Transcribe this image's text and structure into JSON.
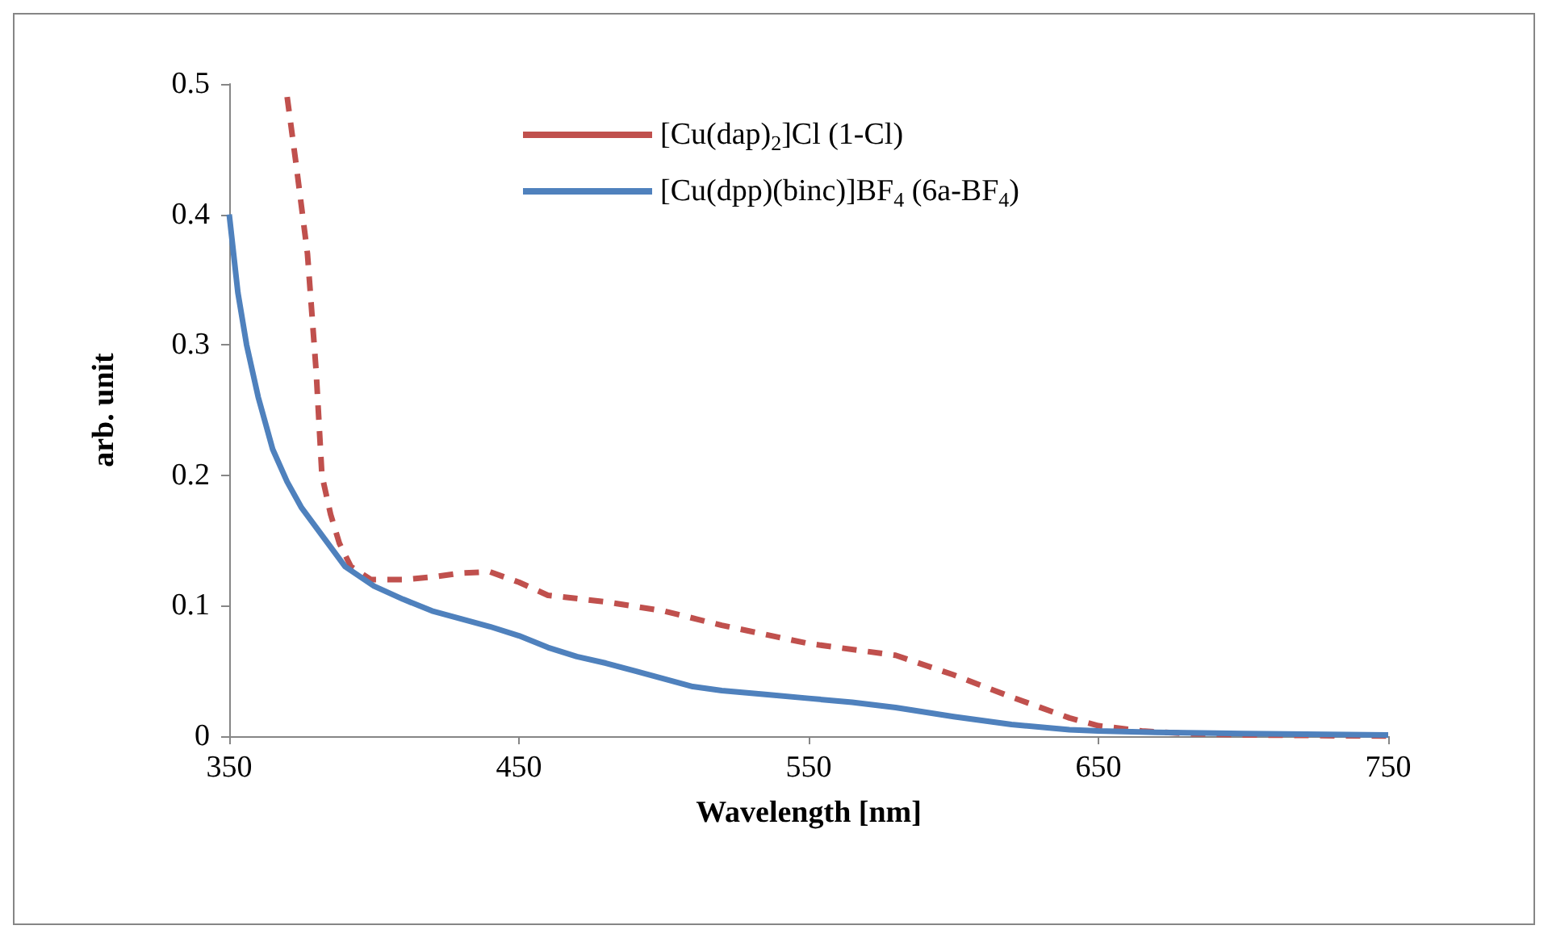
{
  "chart_data": {
    "type": "line",
    "xlabel": "Wavelength [nm]",
    "ylabel": "arb. unit",
    "xlim": [
      350,
      750
    ],
    "xticks": [
      350,
      450,
      550,
      650,
      750
    ],
    "ylim": [
      0,
      0.5
    ],
    "yticks": [
      0,
      0.1,
      0.2,
      0.3,
      0.4,
      0.5
    ],
    "grid": false,
    "legend": "top",
    "marker": "none",
    "series": [
      {
        "name": "[Cu(dap)$_{2}$]Cl (1-Cl)",
        "color": "#c0504d",
        "line_style": "dashed",
        "x": [
          370,
          373,
          377,
          380,
          382,
          385,
          388,
          392,
          399,
          410,
          420,
          430,
          440,
          450,
          460,
          480,
          500,
          520,
          550,
          580,
          600,
          620,
          640,
          650,
          665,
          680,
          700,
          750
        ],
        "values": [
          0.49,
          0.44,
          0.37,
          0.28,
          0.2,
          0.17,
          0.148,
          0.13,
          0.12,
          0.12,
          0.122,
          0.125,
          0.126,
          0.118,
          0.108,
          0.103,
          0.096,
          0.085,
          0.071,
          0.062,
          0.047,
          0.03,
          0.014,
          0.008,
          0.004,
          0.002,
          0.001,
          0
        ]
      },
      {
        "name": "[Cu(dpp)(binc)]BF$_{4}$ (6a-BF$_{4}$)",
        "color": "#4f81bd",
        "line_style": "solid",
        "x": [
          350,
          353,
          356,
          360,
          365,
          370,
          375,
          380,
          390,
          400,
          410,
          420,
          430,
          440,
          450,
          460,
          470,
          480,
          490,
          500,
          510,
          520,
          535,
          550,
          565,
          580,
          600,
          620,
          640,
          650,
          670,
          700,
          750
        ],
        "values": [
          0.4,
          0.34,
          0.3,
          0.26,
          0.22,
          0.195,
          0.175,
          0.16,
          0.13,
          0.115,
          0.105,
          0.096,
          0.09,
          0.084,
          0.077,
          0.068,
          0.061,
          0.056,
          0.05,
          0.044,
          0.038,
          0.035,
          0.032,
          0.029,
          0.026,
          0.022,
          0.015,
          0.009,
          0.005,
          0.004,
          0.003,
          0.002,
          0.001
        ]
      }
    ]
  }
}
